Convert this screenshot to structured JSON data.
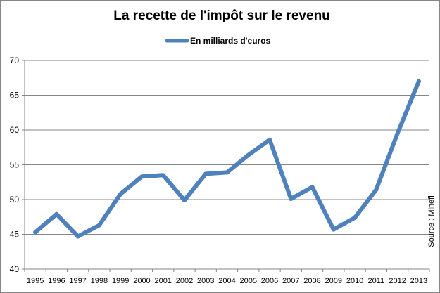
{
  "chart_data": {
    "type": "line",
    "title": "La recette de l'impôt sur le revenu",
    "xlabel": "",
    "ylabel": "",
    "ylim": [
      40,
      70
    ],
    "yticks": [
      40,
      45,
      50,
      55,
      60,
      65,
      70
    ],
    "grid": true,
    "legend_position": "top-center",
    "x": [
      "1995",
      "1996",
      "1997",
      "1998",
      "1999",
      "2000",
      "2001",
      "2002",
      "2003",
      "2004",
      "2005",
      "2006",
      "2007",
      "2008",
      "2009",
      "2010",
      "2011",
      "2012",
      "2013"
    ],
    "series": [
      {
        "name": "En milliards d'euros",
        "color": "#4f81bd",
        "values": [
          45.3,
          47.9,
          44.7,
          46.3,
          50.8,
          53.3,
          53.5,
          49.9,
          53.7,
          53.9,
          56.4,
          58.6,
          50.1,
          51.8,
          45.7,
          47.4,
          51.4,
          59.5,
          67.0
        ]
      }
    ],
    "annotation": "Source : Minefi"
  }
}
